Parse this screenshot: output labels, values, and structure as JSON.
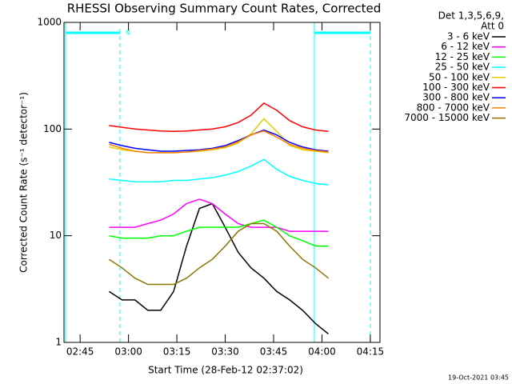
{
  "chart_data": {
    "type": "line",
    "title": "RHESSI Observing Summary Count Rates, Corrected",
    "ylabel": "Corrected Count Rate (s⁻¹ detector⁻¹)",
    "xlabel": "Start Time (28-Feb-12 02:37:02)",
    "footer": "19-Oct-2021 03:45",
    "legend_header": [
      "Det 1,3,5,6,9,",
      "Att 0"
    ],
    "annotations": [
      "N"
    ],
    "yscale": "log",
    "legend": "outside-right",
    "ylim": [
      1,
      1000
    ],
    "yticks": [
      1,
      10,
      100,
      1000
    ],
    "xlim": [
      160,
      258
    ],
    "xticks": [
      {
        "value": 165,
        "label": "02:45"
      },
      {
        "value": 180,
        "label": "03:00"
      },
      {
        "value": 195,
        "label": "03:15"
      },
      {
        "value": 210,
        "label": "03:30"
      },
      {
        "value": 225,
        "label": "03:45"
      },
      {
        "value": 240,
        "label": "04:00"
      },
      {
        "value": 255,
        "label": "04:15"
      }
    ],
    "x": [
      174,
      178,
      182,
      186,
      190,
      194,
      198,
      202,
      206,
      210,
      214,
      218,
      222,
      226,
      230,
      234,
      238,
      242
    ],
    "series": [
      {
        "name": "3 - 6 keV",
        "color": "#000000",
        "values": [
          3,
          2.5,
          2.5,
          2,
          2,
          3,
          8,
          18,
          20,
          12,
          7,
          5,
          4,
          3,
          2.5,
          2,
          1.5,
          1.2
        ]
      },
      {
        "name": "6 - 12 keV",
        "color": "#ff00ff",
        "values": [
          12,
          12,
          12,
          13,
          14,
          16,
          20,
          22,
          20,
          16,
          13,
          12,
          12,
          12,
          11,
          11,
          11,
          11
        ]
      },
      {
        "name": "12 - 25 keV",
        "color": "#00ff00",
        "values": [
          10,
          9.5,
          9.5,
          9.5,
          10,
          10,
          11,
          12,
          12,
          12,
          12,
          13,
          14,
          12,
          10,
          9,
          8,
          8
        ]
      },
      {
        "name": "25 - 50 keV",
        "color": "#00ffff",
        "values": [
          34,
          33,
          32,
          32,
          32,
          33,
          33,
          34,
          35,
          37,
          40,
          45,
          52,
          42,
          36,
          33,
          31,
          30
        ]
      },
      {
        "name": "50 - 100 keV",
        "color": "#e0d000",
        "values": [
          68,
          64,
          62,
          60,
          60,
          60,
          61,
          62,
          64,
          67,
          74,
          90,
          125,
          95,
          70,
          64,
          62,
          60
        ]
      },
      {
        "name": "100 - 300 keV",
        "color": "#ff0000",
        "values": [
          108,
          104,
          100,
          98,
          96,
          95,
          96,
          98,
          100,
          105,
          115,
          135,
          175,
          150,
          120,
          105,
          98,
          95
        ]
      },
      {
        "name": "300 - 800 keV",
        "color": "#0000ff",
        "values": [
          75,
          70,
          66,
          64,
          62,
          62,
          63,
          64,
          66,
          70,
          78,
          88,
          98,
          88,
          75,
          68,
          64,
          62
        ]
      },
      {
        "name": "800 - 7000 keV",
        "color": "#ff8000",
        "values": [
          72,
          66,
          62,
          60,
          60,
          60,
          61,
          63,
          65,
          68,
          76,
          88,
          96,
          84,
          72,
          66,
          63,
          61
        ]
      },
      {
        "name": "7000 - 15000 keV",
        "color": "#8b7500",
        "values": [
          6,
          5,
          4,
          3.5,
          3.5,
          3.5,
          4,
          5,
          6,
          8,
          11,
          13,
          13,
          11,
          8,
          6,
          5,
          4
        ]
      }
    ]
  }
}
